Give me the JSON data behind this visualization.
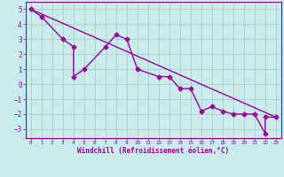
{
  "xlabel": "Windchill (Refroidissement éolien,°C)",
  "bg_color": "#c8ecec",
  "line_color": "#990099",
  "grid_color": "#aacccc",
  "xlim": [
    -0.5,
    23.5
  ],
  "ylim": [
    -3.6,
    5.5
  ],
  "yticks": [
    -3,
    -2,
    -1,
    0,
    1,
    2,
    3,
    4,
    5
  ],
  "xticks": [
    0,
    1,
    2,
    3,
    4,
    5,
    6,
    7,
    8,
    9,
    10,
    11,
    12,
    13,
    14,
    15,
    16,
    17,
    18,
    19,
    20,
    21,
    22,
    23
  ],
  "data_x": [
    0,
    1,
    3,
    4,
    4,
    5,
    7,
    8,
    9,
    10,
    12,
    13,
    14,
    15,
    16,
    17,
    18,
    19,
    20,
    21,
    22,
    22,
    23
  ],
  "data_y": [
    5,
    4.5,
    3,
    2.5,
    0.5,
    1,
    2.5,
    3.3,
    3,
    1,
    0.5,
    0.5,
    -0.3,
    -0.3,
    -1.8,
    -1.5,
    -1.8,
    -2,
    -2,
    -2,
    -3.3,
    -2.2,
    -2.2
  ],
  "trend_x": [
    0,
    23
  ],
  "trend_y": [
    5,
    -2.2
  ],
  "marker": "D",
  "markersize": 2.5,
  "linewidth": 1.0
}
